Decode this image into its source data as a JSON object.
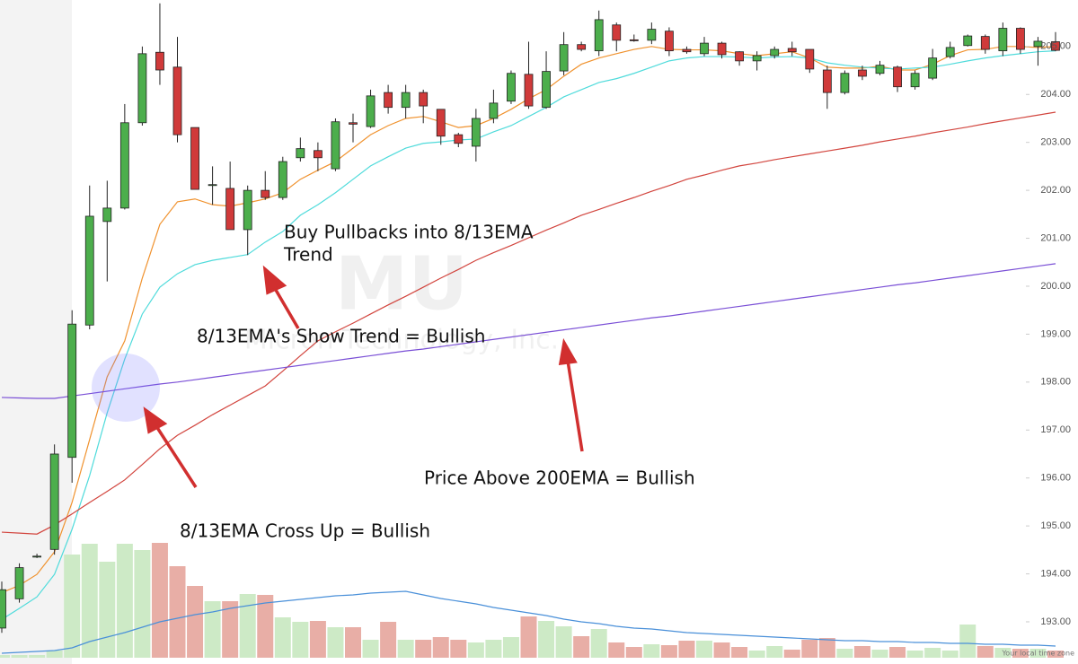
{
  "chart_data": {
    "type": "candlestick",
    "watermark": "MU",
    "watermark_subtitle": "Micron Technology, Inc.",
    "footer": "Your local time zone",
    "ylim": [
      192.12,
      205.97
    ],
    "yticks": [
      {
        "value": 193,
        "label": "193.00"
      },
      {
        "value": 194,
        "label": "194.00"
      },
      {
        "value": 195,
        "label": "195.00"
      },
      {
        "value": 196,
        "label": "196.00"
      },
      {
        "value": 197,
        "label": "197.00"
      },
      {
        "value": 198,
        "label": "198.00"
      },
      {
        "value": 199,
        "label": "199.00"
      },
      {
        "value": 200,
        "label": "200.00"
      },
      {
        "value": 201,
        "label": "201.00"
      },
      {
        "value": 202,
        "label": "202.00"
      },
      {
        "value": 203,
        "label": "203.00"
      },
      {
        "value": 204,
        "label": "204.00"
      },
      {
        "value": 205,
        "label": "205.00"
      }
    ],
    "grid": false,
    "up_color": "#4cae4c",
    "down_color": "#d03a3a",
    "volume_up_color": "#cdeac6",
    "volume_down_color": "#e8aea6",
    "open": [
      192.87,
      193.48,
      194.35,
      194.51,
      196.43,
      199.19,
      201.35,
      201.63,
      203.41,
      204.88,
      204.57,
      203.31,
      202.1,
      202.04,
      201.18,
      202.0,
      201.85,
      202.68,
      202.83,
      202.45,
      203.41,
      203.33,
      204.04,
      203.73,
      204.04,
      203.69,
      203.16,
      202.92,
      203.5,
      203.86,
      204.42,
      203.73,
      204.49,
      205.04,
      204.91,
      205.45,
      205.14,
      205.13,
      205.32,
      204.94,
      204.85,
      205.07,
      204.89,
      204.7,
      204.81,
      204.96,
      204.94,
      204.51,
      204.04,
      204.51,
      204.44,
      204.57,
      204.16,
      204.34,
      204.79,
      205.02,
      205.21,
      204.91,
      205.38,
      205.0,
      205.1
    ],
    "high": [
      193.84,
      194.22,
      194.42,
      196.7,
      199.5,
      202.1,
      202.2,
      203.8,
      205.0,
      205.9,
      205.2,
      203.31,
      202.5,
      202.6,
      202.1,
      202.4,
      202.7,
      203.1,
      203.0,
      203.5,
      203.6,
      204.1,
      204.2,
      204.2,
      204.1,
      203.69,
      203.2,
      203.7,
      204.1,
      204.5,
      205.1,
      204.9,
      205.3,
      205.1,
      205.75,
      205.5,
      205.25,
      205.5,
      205.4,
      205.0,
      205.2,
      205.1,
      204.9,
      204.9,
      205.0,
      205.1,
      204.94,
      204.6,
      204.5,
      204.6,
      204.7,
      204.6,
      204.5,
      204.95,
      205.1,
      205.25,
      205.25,
      205.5,
      205.4,
      205.2,
      205.3
    ],
    "low": [
      192.77,
      193.4,
      194.33,
      194.4,
      195.9,
      199.1,
      200.1,
      201.6,
      203.35,
      204.2,
      203.0,
      202.02,
      201.7,
      201.18,
      200.65,
      201.8,
      201.8,
      202.6,
      202.4,
      202.4,
      203.0,
      203.3,
      203.6,
      203.5,
      203.4,
      202.95,
      202.9,
      202.6,
      203.4,
      203.8,
      203.7,
      203.7,
      204.4,
      204.9,
      204.8,
      204.9,
      205.1,
      205.05,
      204.8,
      204.85,
      204.8,
      204.75,
      204.6,
      204.5,
      204.75,
      204.8,
      204.45,
      203.7,
      204.0,
      204.3,
      204.4,
      204.05,
      204.1,
      204.3,
      204.75,
      205.0,
      204.85,
      204.8,
      204.85,
      204.6,
      204.9
    ],
    "close": [
      193.67,
      194.13,
      194.37,
      196.5,
      199.21,
      201.46,
      201.63,
      203.41,
      204.85,
      204.51,
      203.16,
      202.02,
      202.12,
      201.18,
      202.0,
      201.85,
      202.6,
      202.87,
      202.68,
      203.43,
      203.38,
      203.97,
      203.73,
      204.04,
      203.76,
      203.13,
      202.98,
      203.5,
      203.82,
      204.44,
      203.76,
      204.48,
      205.04,
      204.94,
      205.56,
      205.13,
      205.12,
      205.36,
      204.91,
      204.89,
      205.07,
      204.83,
      204.7,
      204.81,
      204.94,
      204.89,
      204.53,
      204.04,
      204.44,
      204.38,
      204.61,
      204.16,
      204.44,
      204.76,
      204.98,
      205.22,
      204.94,
      205.38,
      204.94,
      205.11,
      204.92
    ],
    "lines": [
      {
        "color": "#f0922e",
        "values": [
          193.61,
          193.76,
          193.99,
          194.46,
          195.49,
          196.8,
          198.11,
          198.86,
          200.17,
          201.29,
          201.76,
          201.82,
          201.7,
          201.67,
          201.74,
          201.82,
          201.95,
          202.23,
          202.42,
          202.6,
          202.88,
          203.16,
          203.35,
          203.5,
          203.54,
          203.43,
          203.31,
          203.35,
          203.5,
          203.69,
          203.91,
          204.1,
          204.38,
          204.63,
          204.76,
          204.85,
          204.94,
          205.0,
          204.94,
          204.93,
          204.93,
          204.91,
          204.85,
          204.81,
          204.85,
          204.89,
          204.76,
          204.57,
          204.55,
          204.55,
          204.59,
          204.51,
          204.51,
          204.63,
          204.81,
          204.93,
          204.94,
          205.0,
          205.0,
          204.98,
          205.0
        ]
      },
      {
        "color": "#4fdbdb",
        "values": [
          193.05,
          193.28,
          193.52,
          193.99,
          194.93,
          196.05,
          197.36,
          198.48,
          199.42,
          199.98,
          200.26,
          200.45,
          200.54,
          200.6,
          200.66,
          200.92,
          201.14,
          201.48,
          201.7,
          201.95,
          202.23,
          202.51,
          202.7,
          202.88,
          202.98,
          203.01,
          203.05,
          203.07,
          203.22,
          203.35,
          203.54,
          203.73,
          203.95,
          204.1,
          204.25,
          204.33,
          204.44,
          204.57,
          204.7,
          204.76,
          204.79,
          204.79,
          204.78,
          204.76,
          204.78,
          204.79,
          204.76,
          204.66,
          204.61,
          204.57,
          204.55,
          204.53,
          204.55,
          204.57,
          204.63,
          204.7,
          204.76,
          204.81,
          204.85,
          204.89,
          204.91
        ]
      },
      {
        "color": "#d2453e",
        "values": [
          194.87,
          194.85,
          194.83,
          195.02,
          195.25,
          195.49,
          195.72,
          195.96,
          196.28,
          196.61,
          196.89,
          197.1,
          197.32,
          197.52,
          197.72,
          197.92,
          198.23,
          198.55,
          198.86,
          199.05,
          199.23,
          199.42,
          199.61,
          199.79,
          199.98,
          200.17,
          200.35,
          200.54,
          200.7,
          200.85,
          201.01,
          201.17,
          201.32,
          201.48,
          201.6,
          201.73,
          201.85,
          201.98,
          202.1,
          202.23,
          202.32,
          202.42,
          202.51,
          202.57,
          202.64,
          202.7,
          202.76,
          202.82,
          202.88,
          202.94,
          203.01,
          203.07,
          203.13,
          203.2,
          203.26,
          203.32,
          203.39,
          203.45,
          203.51,
          203.57,
          203.63
        ]
      },
      {
        "color": "#7a4fd6",
        "values": [
          197.68,
          197.67,
          197.66,
          197.66,
          197.71,
          197.76,
          197.81,
          197.86,
          197.91,
          197.96,
          198.0,
          198.05,
          198.1,
          198.15,
          198.2,
          198.25,
          198.3,
          198.35,
          198.4,
          198.45,
          198.5,
          198.55,
          198.6,
          198.65,
          198.69,
          198.74,
          198.79,
          198.84,
          198.89,
          198.94,
          198.99,
          199.04,
          199.09,
          199.14,
          199.19,
          199.24,
          199.29,
          199.34,
          199.38,
          199.43,
          199.48,
          199.53,
          199.58,
          199.63,
          199.68,
          199.73,
          199.78,
          199.83,
          199.88,
          199.93,
          199.98,
          200.03,
          200.07,
          200.12,
          200.17,
          200.22,
          200.27,
          200.32,
          200.37,
          200.42,
          200.47
        ]
      }
    ],
    "volume": [
      3,
      3,
      3,
      8,
      115,
      127,
      107,
      127,
      120,
      128,
      102,
      80,
      63,
      63,
      71,
      70,
      45,
      40,
      41,
      34,
      34,
      20,
      40,
      20,
      20,
      23,
      20,
      17,
      20,
      23,
      46,
      41,
      35,
      24,
      32,
      17,
      12,
      15,
      14,
      19,
      19,
      17,
      12,
      8,
      13,
      9,
      20,
      22,
      10,
      13,
      9,
      12,
      8,
      11,
      8,
      37,
      13,
      11,
      10,
      10,
      8
    ],
    "volume_ma": {
      "color": "#4a90d9",
      "values": [
        5,
        6,
        7,
        8,
        11,
        18,
        23,
        28,
        34,
        40,
        44,
        48,
        51,
        55,
        58,
        61,
        63,
        65,
        67,
        69,
        70,
        72,
        73,
        74,
        70,
        66,
        63,
        60,
        56,
        53,
        50,
        47,
        43,
        40,
        38,
        35,
        33,
        32,
        30,
        28,
        27,
        26,
        25,
        24,
        23,
        22,
        21,
        20,
        19,
        19,
        18,
        18,
        17,
        17,
        16,
        16,
        15,
        15,
        14,
        14,
        13
      ]
    },
    "annotations": [
      {
        "lines": [
          "Buy Pullbacks into 8/13EMA",
          "Trend"
        ]
      },
      {
        "lines": [
          "8/13EMA's Show Trend = Bullish"
        ]
      },
      {
        "lines": [
          "Price Above 200EMA = Bullish"
        ]
      },
      {
        "lines": [
          "8/13EMA Cross Up = Bullish"
        ]
      }
    ]
  }
}
